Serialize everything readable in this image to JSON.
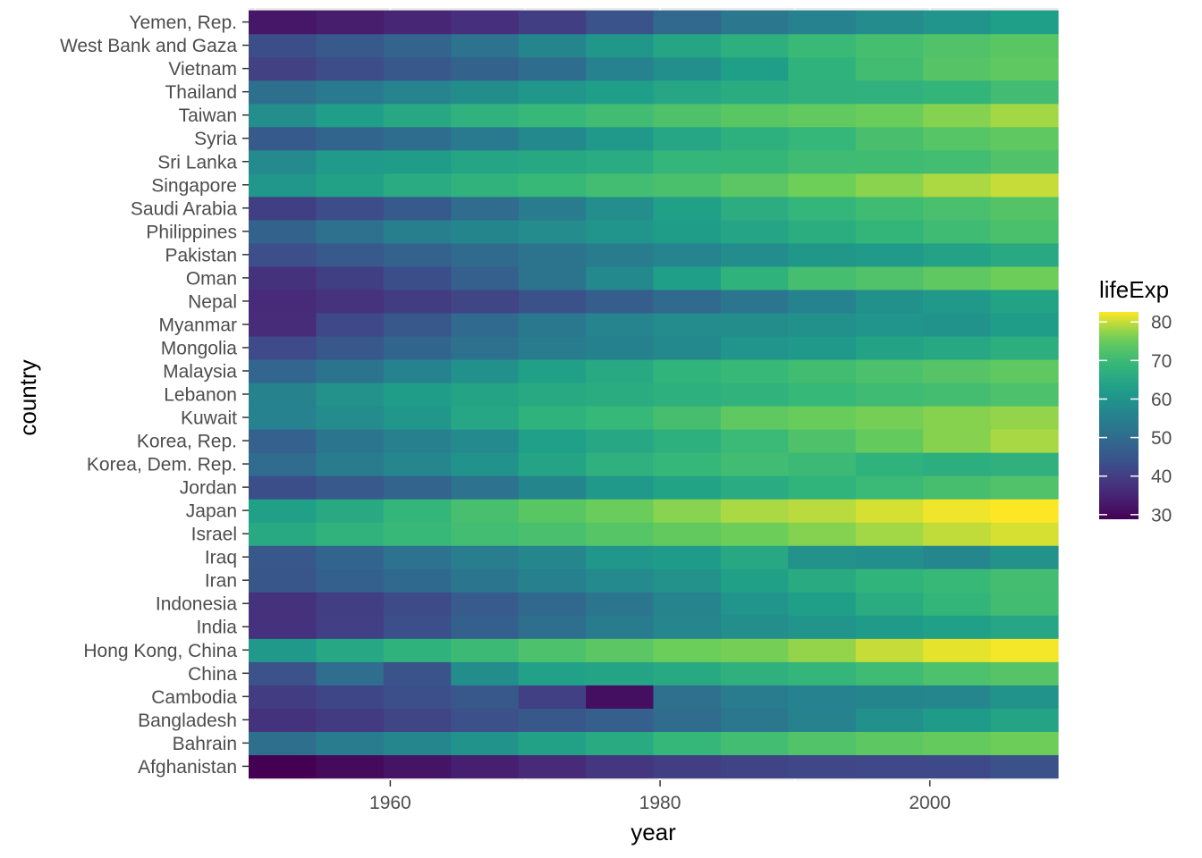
{
  "chart_data": {
    "type": "heatmap",
    "title": "",
    "xlabel": "year",
    "ylabel": "country",
    "xlim": [
      1949.5,
      2009.5
    ],
    "x_ticks": [
      1960,
      1980,
      2000
    ],
    "x_tick_labels": [
      "1960",
      "1980",
      "2000"
    ],
    "years": [
      1952,
      1957,
      1962,
      1967,
      1972,
      1977,
      1982,
      1987,
      1992,
      1997,
      2002,
      2007
    ],
    "countries": [
      "Afghanistan",
      "Bahrain",
      "Bangladesh",
      "Cambodia",
      "China",
      "Hong Kong, China",
      "India",
      "Indonesia",
      "Iran",
      "Iraq",
      "Israel",
      "Japan",
      "Jordan",
      "Korea, Dem. Rep.",
      "Korea, Rep.",
      "Kuwait",
      "Lebanon",
      "Malaysia",
      "Mongolia",
      "Myanmar",
      "Nepal",
      "Oman",
      "Pakistan",
      "Philippines",
      "Saudi Arabia",
      "Singapore",
      "Sri Lanka",
      "Syria",
      "Taiwan",
      "Thailand",
      "Vietnam",
      "West Bank and Gaza",
      "Yemen, Rep."
    ],
    "values": [
      [
        28.8,
        30.3,
        32.0,
        34.0,
        36.1,
        38.4,
        39.9,
        40.8,
        41.7,
        41.8,
        42.1,
        43.8
      ],
      [
        50.9,
        53.8,
        56.9,
        59.9,
        63.3,
        65.6,
        69.1,
        70.8,
        72.6,
        73.9,
        74.8,
        75.6
      ],
      [
        37.5,
        39.3,
        41.2,
        43.5,
        45.3,
        46.9,
        50.0,
        52.8,
        56.0,
        59.4,
        62.0,
        64.1
      ],
      [
        39.4,
        41.4,
        43.4,
        45.4,
        40.3,
        31.2,
        51.0,
        53.9,
        55.8,
        56.5,
        56.8,
        59.7
      ],
      [
        44.0,
        50.5,
        44.5,
        58.4,
        63.1,
        64.0,
        65.5,
        67.3,
        68.7,
        70.4,
        72.0,
        73.0
      ],
      [
        61.0,
        64.8,
        67.7,
        70.0,
        72.0,
        73.6,
        75.5,
        76.2,
        77.6,
        80.0,
        81.5,
        82.2
      ],
      [
        37.4,
        40.2,
        43.6,
        47.2,
        50.7,
        54.2,
        56.6,
        58.6,
        60.2,
        61.8,
        62.9,
        64.7
      ],
      [
        37.5,
        39.9,
        42.5,
        46.0,
        49.2,
        52.7,
        56.2,
        60.1,
        62.7,
        66.0,
        68.6,
        70.7
      ],
      [
        44.9,
        47.2,
        49.3,
        52.5,
        55.2,
        57.7,
        59.6,
        63.0,
        65.7,
        68.0,
        69.5,
        71.0
      ],
      [
        45.3,
        48.4,
        51.5,
        54.5,
        57.0,
        60.4,
        62.0,
        65.0,
        59.5,
        58.8,
        57.0,
        59.5
      ],
      [
        65.4,
        67.8,
        69.4,
        70.8,
        71.6,
        73.1,
        74.5,
        75.6,
        76.9,
        78.3,
        79.7,
        80.7
      ],
      [
        63.0,
        65.5,
        68.7,
        71.4,
        73.4,
        75.4,
        77.1,
        78.7,
        79.4,
        80.7,
        82.0,
        82.6
      ],
      [
        43.2,
        45.7,
        48.1,
        51.6,
        56.5,
        61.1,
        63.7,
        65.9,
        68.0,
        69.8,
        71.3,
        72.5
      ],
      [
        50.1,
        54.1,
        56.7,
        59.9,
        64.0,
        67.2,
        69.1,
        70.6,
        70.0,
        67.7,
        66.7,
        67.3
      ],
      [
        47.5,
        52.7,
        55.3,
        57.7,
        62.6,
        64.8,
        67.1,
        69.8,
        72.2,
        74.6,
        77.0,
        78.6
      ],
      [
        55.6,
        58.0,
        60.5,
        64.6,
        67.7,
        69.3,
        71.3,
        74.2,
        75.2,
        76.2,
        77.0,
        77.6
      ],
      [
        55.9,
        59.5,
        62.1,
        63.9,
        65.4,
        66.1,
        67.0,
        67.9,
        69.3,
        70.3,
        71.0,
        72.0
      ],
      [
        48.5,
        52.1,
        55.7,
        59.4,
        63.0,
        65.3,
        68.0,
        69.5,
        70.7,
        71.9,
        73.0,
        74.2
      ],
      [
        42.2,
        45.2,
        48.3,
        51.3,
        53.8,
        55.5,
        57.5,
        60.2,
        61.3,
        63.6,
        65.0,
        66.8
      ],
      [
        36.3,
        41.9,
        45.1,
        49.4,
        53.1,
        56.1,
        58.1,
        58.3,
        59.3,
        60.3,
        59.9,
        62.1
      ],
      [
        36.2,
        37.7,
        39.4,
        41.2,
        43.9,
        46.7,
        49.6,
        52.5,
        55.7,
        59.4,
        61.3,
        63.8
      ],
      [
        37.6,
        40.1,
        43.2,
        46.9,
        52.1,
        57.4,
        62.7,
        67.7,
        71.2,
        72.5,
        74.2,
        75.6
      ],
      [
        43.4,
        45.6,
        47.7,
        49.8,
        51.9,
        54.0,
        56.2,
        58.2,
        60.8,
        61.8,
        63.6,
        65.5
      ],
      [
        47.8,
        51.3,
        54.8,
        56.4,
        58.1,
        60.1,
        62.1,
        64.2,
        66.5,
        68.6,
        70.3,
        71.7
      ],
      [
        40.0,
        42.9,
        45.9,
        49.9,
        53.9,
        58.7,
        63.0,
        66.3,
        68.8,
        70.5,
        71.6,
        72.8
      ],
      [
        60.4,
        63.2,
        65.8,
        67.9,
        69.5,
        70.8,
        71.8,
        73.6,
        75.8,
        77.2,
        78.8,
        80.0
      ],
      [
        57.6,
        61.5,
        62.2,
        64.3,
        65.0,
        65.9,
        68.8,
        69.0,
        70.4,
        70.5,
        70.8,
        72.4
      ],
      [
        45.9,
        48.3,
        50.3,
        53.7,
        57.3,
        61.2,
        64.6,
        66.97,
        69.2,
        71.5,
        73.1,
        74.1
      ],
      [
        58.5,
        62.4,
        65.2,
        67.5,
        69.4,
        70.6,
        72.2,
        73.4,
        74.3,
        75.3,
        76.9,
        78.4
      ],
      [
        50.8,
        53.6,
        56.1,
        58.3,
        60.4,
        62.5,
        64.6,
        66.1,
        67.3,
        67.5,
        68.6,
        70.6
      ],
      [
        40.4,
        42.9,
        45.4,
        47.8,
        50.3,
        55.8,
        58.8,
        62.8,
        67.7,
        70.7,
        73.0,
        74.2
      ],
      [
        43.2,
        45.7,
        48.1,
        51.6,
        56.5,
        60.8,
        64.4,
        67.0,
        69.7,
        71.1,
        72.4,
        73.4
      ],
      [
        32.5,
        33.7,
        35.2,
        37.0,
        39.8,
        44.2,
        49.1,
        52.9,
        55.6,
        58.0,
        60.3,
        62.7
      ]
    ],
    "legend": {
      "title": "lifeExp",
      "ticks": [
        30,
        40,
        50,
        60,
        70,
        80
      ],
      "tick_labels": [
        "30",
        "40",
        "50",
        "60",
        "70",
        "80"
      ],
      "range": [
        28.8,
        82.6
      ],
      "placement": "right"
    },
    "colormap": "viridis",
    "grid": true,
    "colors": {
      "panel_background": "#ebebeb",
      "grid": "#ffffff",
      "tick_text": "#4d4d4d",
      "tick_mark": "#333333"
    }
  }
}
